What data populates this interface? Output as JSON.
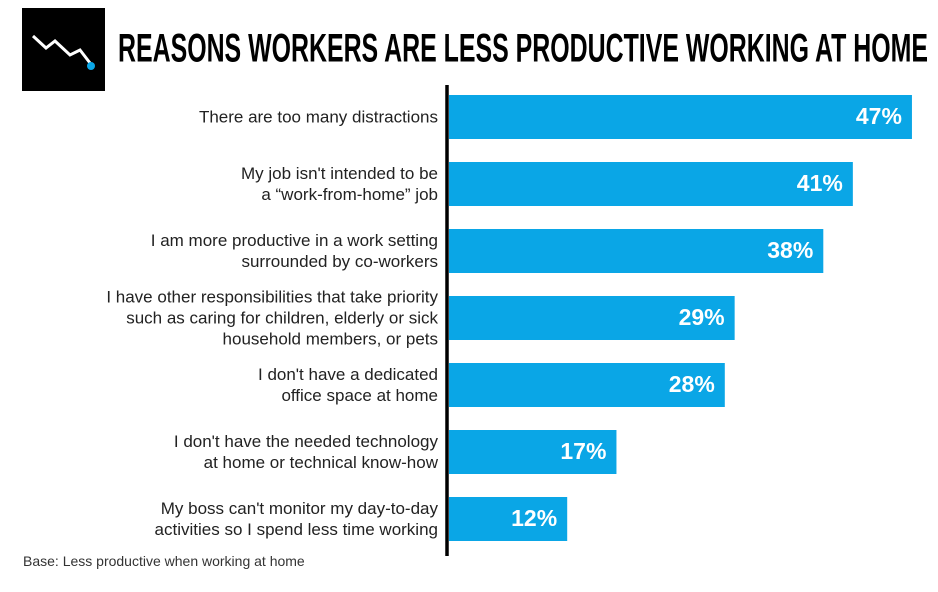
{
  "chart_data": {
    "type": "bar",
    "orientation": "horizontal",
    "title": "REASONS WORKERS ARE LESS PRODUCTIVE WORKING AT HOME",
    "categories": [
      "There are too many distractions",
      "My job isn't intended to be\na “work-from-home” job",
      "I am more productive in a work setting\nsurrounded by co-workers",
      "I have other responsibilities that take priority\nsuch as caring for children, elderly or sick\nhousehold members, or pets",
      "I don't have a dedicated\noffice space at home",
      "I don't have the needed technology\nat home or technical know-how",
      "My boss can't monitor my day-to-day\nactivities so I spend less time working"
    ],
    "values": [
      47,
      41,
      38,
      29,
      28,
      17,
      12
    ],
    "value_labels": [
      "47%",
      "41%",
      "38%",
      "29%",
      "28%",
      "17%",
      "12%"
    ],
    "color": "#0aa6e6",
    "footnote": "Base: Less productive when working at home"
  }
}
